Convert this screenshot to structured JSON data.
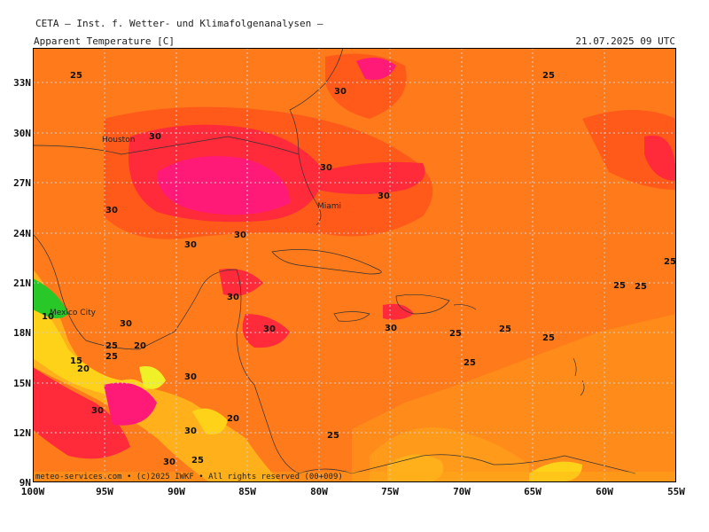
{
  "header": {
    "source": "CETA – Inst. f. Wetter- und Klimafolgenanalysen –",
    "field": "Apparent Temperature [C]",
    "valid_time": "21.07.2025 09 UTC"
  },
  "axes": {
    "lat_labels": [
      "33N",
      "30N",
      "27N",
      "24N",
      "21N",
      "18N",
      "15N",
      "12N",
      "9N"
    ],
    "lon_labels": [
      "100W",
      "95W",
      "90W",
      "85W",
      "80W",
      "75W",
      "70W",
      "65W",
      "60W",
      "55W"
    ]
  },
  "contour_labels": [
    "25",
    "30",
    "30",
    "30",
    "30",
    "30",
    "30",
    "30",
    "30",
    "30",
    "30",
    "30",
    "30",
    "30",
    "30",
    "25",
    "25",
    "25",
    "25",
    "25",
    "25",
    "25",
    "25",
    "25",
    "25",
    "25",
    "20",
    "20",
    "20",
    "15",
    "10"
  ],
  "cities": [
    "Houston",
    "Miami",
    "Mexico City"
  ],
  "credit": "meteo-services.com • (c)2025 IWKF • All rights reserved (00+009)",
  "colors": {
    "base": "#ff7a1a",
    "hot": "#ff5a1a",
    "very_hot": "#ff2a3a",
    "extreme": "#ff1a78",
    "warm": "#ff9a1a",
    "mild": "#ffb01a",
    "cool": "#ffd21a",
    "cold": "#f0f028",
    "green": "#28c828"
  }
}
